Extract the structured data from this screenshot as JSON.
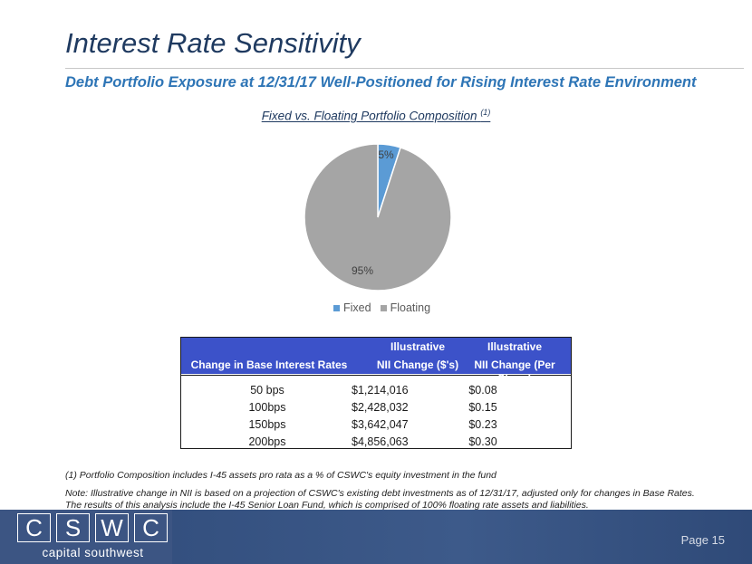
{
  "slide": {
    "title": "Interest Rate Sensitivity",
    "subtitle": "Debt Portfolio Exposure at 12/31/17 Well-Positioned for Rising Interest Rate Environment",
    "page": "Page 15"
  },
  "colors": {
    "title": "#1f3a60",
    "subtitle": "#2e75b6",
    "table_header": "#3c52c9",
    "footer": "#3c5583",
    "fixed": "#5b9bd5",
    "floating": "#a5a5a5"
  },
  "chart_data": {
    "type": "pie",
    "title": "Fixed vs. Floating Portfolio Composition",
    "title_note": "(1)",
    "categories": [
      "Fixed",
      "Floating"
    ],
    "values": [
      5,
      95
    ],
    "labels": [
      "5%",
      "95%"
    ],
    "legend_position": "bottom"
  },
  "table": {
    "headers": {
      "col1": "Change in Base Interest Rates",
      "col2_line1": "Illustrative",
      "col2_line2": "NII Change ($'s)",
      "col3_line1": "Illustrative",
      "col3_line2": "NII Change (Per Share)"
    },
    "rows": [
      {
        "change": "50 bps",
        "nii": "$1,214,016",
        "per_share": "$0.08"
      },
      {
        "change": "100bps",
        "nii": "$2,428,032",
        "per_share": "$0.15"
      },
      {
        "change": "150bps",
        "nii": "$3,642,047",
        "per_share": "$0.23"
      },
      {
        "change": "200bps",
        "nii": "$4,856,063",
        "per_share": "$0.30"
      }
    ]
  },
  "footnote": "(1) Portfolio Composition includes I-45 assets pro rata as a % of CSWC's equity investment in the fund",
  "note": "Note:  Illustrative change in NII is based on a projection of CSWC's existing debt investments as of 12/31/17,  adjusted only for changes in Base Rates.  The results of this analysis include the I-45 Senior Loan Fund, which is comprised of 100% floating rate assets and liabilities.",
  "logo": {
    "letters": [
      "C",
      "S",
      "W",
      "C"
    ],
    "tagline": "capital southwest"
  }
}
